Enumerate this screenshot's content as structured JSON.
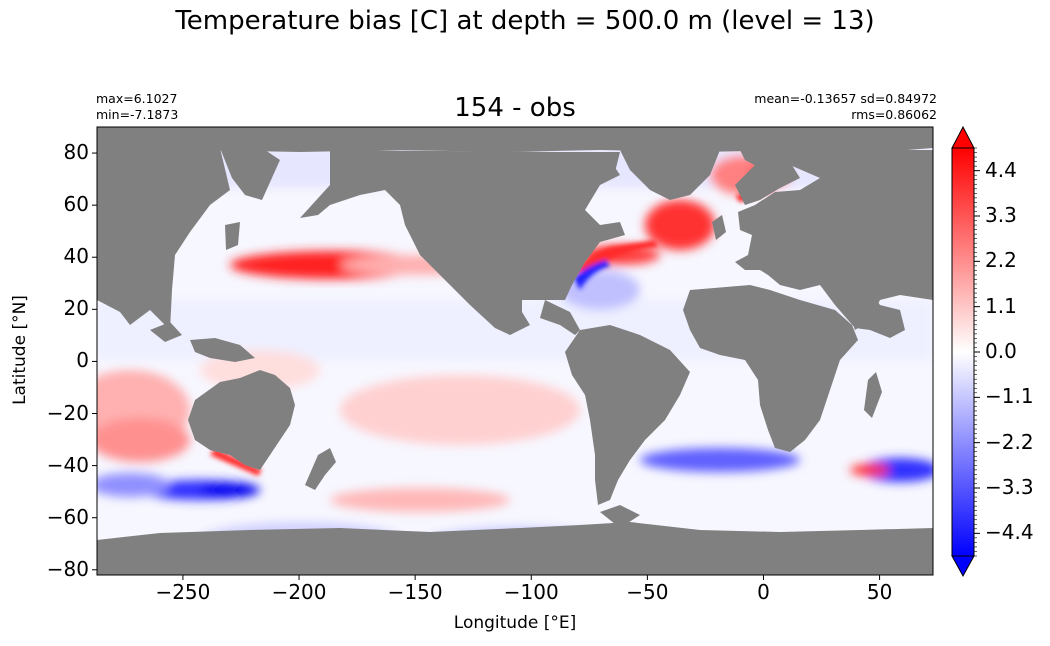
{
  "figure": {
    "suptitle": "Temperature bias [C] at depth = 500.0 m (level = 13)",
    "title": "154 - obs",
    "stats_left": [
      "max=6.1027",
      "min=-7.1873"
    ],
    "stats_right": [
      "mean=-0.13657 sd=0.84972",
      "rms=0.86062"
    ],
    "xlabel": "Longitude [°E]",
    "ylabel": "Latitude [°N]"
  },
  "map": {
    "xlim": [
      -287,
      73
    ],
    "ylim": [
      -82,
      90
    ],
    "xticks": [
      -250,
      -200,
      -150,
      -100,
      -50,
      0,
      50
    ],
    "xtick_labels": [
      "−250",
      "−200",
      "−150",
      "−100",
      "−50",
      "0",
      "50"
    ],
    "yticks": [
      80,
      60,
      40,
      20,
      0,
      -20,
      -40,
      -60,
      -80
    ],
    "ytick_labels": [
      "80",
      "60",
      "40",
      "20",
      "0",
      "−20",
      "−40",
      "−60",
      "−80"
    ],
    "land_color": "#808080",
    "colormap": "bwr"
  },
  "colorbar": {
    "range": [
      -4.95,
      4.95
    ],
    "ticks": [
      4.4,
      3.3,
      2.2,
      1.1,
      0.0,
      -1.1,
      -2.2,
      -3.3,
      -4.4
    ],
    "tick_labels": [
      "4.4",
      "3.3",
      "2.2",
      "1.1",
      "0.0",
      "−1.1",
      "−2.2",
      "−3.3",
      "−4.4"
    ],
    "extend": "both",
    "low_color": "#0000ff",
    "mid_color": "#ffffff",
    "high_color": "#ff0000"
  }
}
